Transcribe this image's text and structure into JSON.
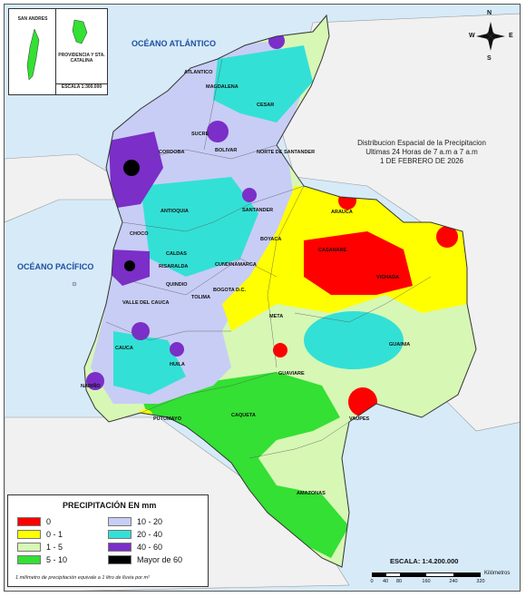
{
  "map": {
    "title_lines": [
      "Distribucion Espacial de la Precipitacion",
      "Ultimas 24 Horas de 7 a.m  a  7 a.m",
      "1 DE FEBRERO DE 2026"
    ],
    "ocean_atlantic": "OCÉANO ATLÁNTICO",
    "ocean_pacific": "OCÉANO PACÍFICO",
    "inset": {
      "san_andres": "SAN ANDRES",
      "providencia": "PROVIDENCIA Y STA. CATALINA",
      "escala": "ESCALA 1:300.000"
    },
    "compass": {
      "n": "N",
      "s": "S",
      "e": "E",
      "w": "W"
    },
    "departments": [
      {
        "key": "atlantico",
        "label": "ATLANTICO"
      },
      {
        "key": "magdalena",
        "label": "MAGDALENA"
      },
      {
        "key": "cesar",
        "label": "CESAR"
      },
      {
        "key": "sucre",
        "label": "SUCRE"
      },
      {
        "key": "cordoba",
        "label": "CORDOBA"
      },
      {
        "key": "bolivar",
        "label": "BOLIVAR"
      },
      {
        "key": "norte_de_santander",
        "label": "NORTE DE SANTANDER"
      },
      {
        "key": "antioquia",
        "label": "ANTIOQUIA"
      },
      {
        "key": "santander",
        "label": "SANTANDER"
      },
      {
        "key": "arauca",
        "label": "ARAUCA"
      },
      {
        "key": "choco",
        "label": "CHOCO"
      },
      {
        "key": "boyaca",
        "label": "BOYACA"
      },
      {
        "key": "casanare",
        "label": "CASANARE"
      },
      {
        "key": "caldas",
        "label": "CALDAS"
      },
      {
        "key": "risaralda",
        "label": "RISARALDA"
      },
      {
        "key": "cundinamarca",
        "label": "CUNDINAMARCA"
      },
      {
        "key": "vichada",
        "label": "VICHADA"
      },
      {
        "key": "quindio",
        "label": "QUINDIO"
      },
      {
        "key": "bogota",
        "label": "BOGOTA D.C."
      },
      {
        "key": "valle_del_cauca",
        "label": "VALLE DEL CAUCA"
      },
      {
        "key": "tolima",
        "label": "TOLIMA"
      },
      {
        "key": "meta",
        "label": "META"
      },
      {
        "key": "guainia",
        "label": "GUAINIA"
      },
      {
        "key": "cauca",
        "label": "CAUCA"
      },
      {
        "key": "huila",
        "label": "HUILA"
      },
      {
        "key": "guaviare",
        "label": "GUAVIARE"
      },
      {
        "key": "narino",
        "label": "NARIÑO"
      },
      {
        "key": "putumayo",
        "label": "PUTUMAYO"
      },
      {
        "key": "caqueta",
        "label": "CAQUETA"
      },
      {
        "key": "vaupes",
        "label": "VAUPES"
      },
      {
        "key": "amazonas",
        "label": "AMAZONAS"
      }
    ]
  },
  "legend": {
    "title": "PRECIPITACIÓN EN mm",
    "items": [
      {
        "label": "0",
        "color": "#ff0000"
      },
      {
        "label": "0 - 1",
        "color": "#ffff00"
      },
      {
        "label": "1 - 5",
        "color": "#d7f7b5"
      },
      {
        "label": "5 - 10",
        "color": "#33e033"
      },
      {
        "label": "10 - 20",
        "color": "#c8cdf5"
      },
      {
        "label": "20 - 40",
        "color": "#33e0d6"
      },
      {
        "label": "40 - 60",
        "color": "#7b2ec8"
      },
      {
        "label": "Mayor de 60",
        "color": "#000000"
      }
    ],
    "note": "1 milímetro de precipitación equivale a 1 litro de lluvia por m²"
  },
  "scale": {
    "title": "ESCALA: 1:4.200.000",
    "ticks": [
      "0",
      "40",
      "80",
      "160",
      "240",
      "320"
    ],
    "unit": "Kilómetros"
  }
}
